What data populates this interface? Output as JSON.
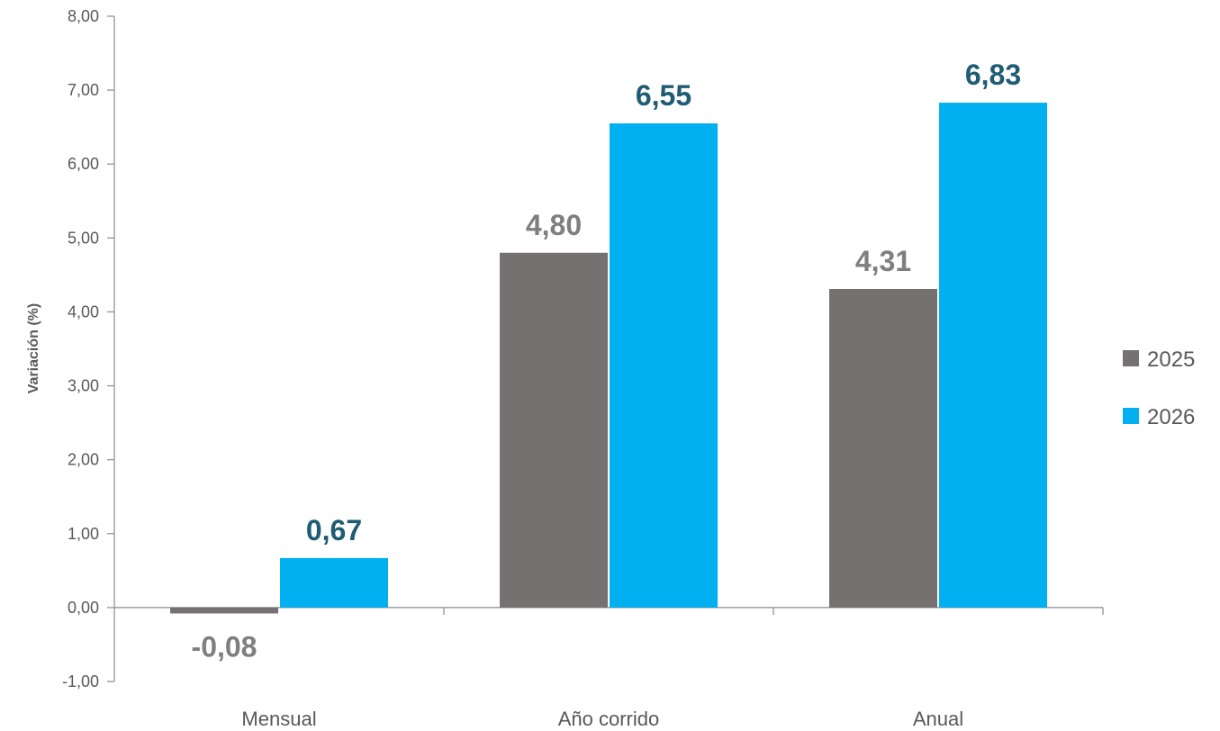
{
  "chart_data": {
    "type": "bar",
    "categories": [
      "Mensual",
      "Año corrido",
      "Anual"
    ],
    "series": [
      {
        "name": "2025",
        "color": "#767171",
        "label_color": "#7f7f7f",
        "values": [
          -0.08,
          4.8,
          4.31
        ],
        "labels": [
          "-0,08",
          "4,80",
          "4,31"
        ]
      },
      {
        "name": "2026",
        "color": "#00b0f0",
        "label_color": "#1f5c73",
        "values": [
          0.67,
          6.55,
          6.83
        ],
        "labels": [
          "0,67",
          "6,55",
          "6,83"
        ]
      }
    ],
    "title": "",
    "xlabel": "",
    "ylabel": "Variación (%)",
    "ylim": [
      -1,
      8
    ],
    "yticks": [
      -1,
      0,
      1,
      2,
      3,
      4,
      5,
      6,
      7,
      8
    ],
    "ytick_labels": [
      "-1,00",
      "0,00",
      "1,00",
      "2,00",
      "3,00",
      "4,00",
      "5,00",
      "6,00",
      "7,00",
      "8,00"
    ],
    "grid": false,
    "legend_position": "right"
  }
}
